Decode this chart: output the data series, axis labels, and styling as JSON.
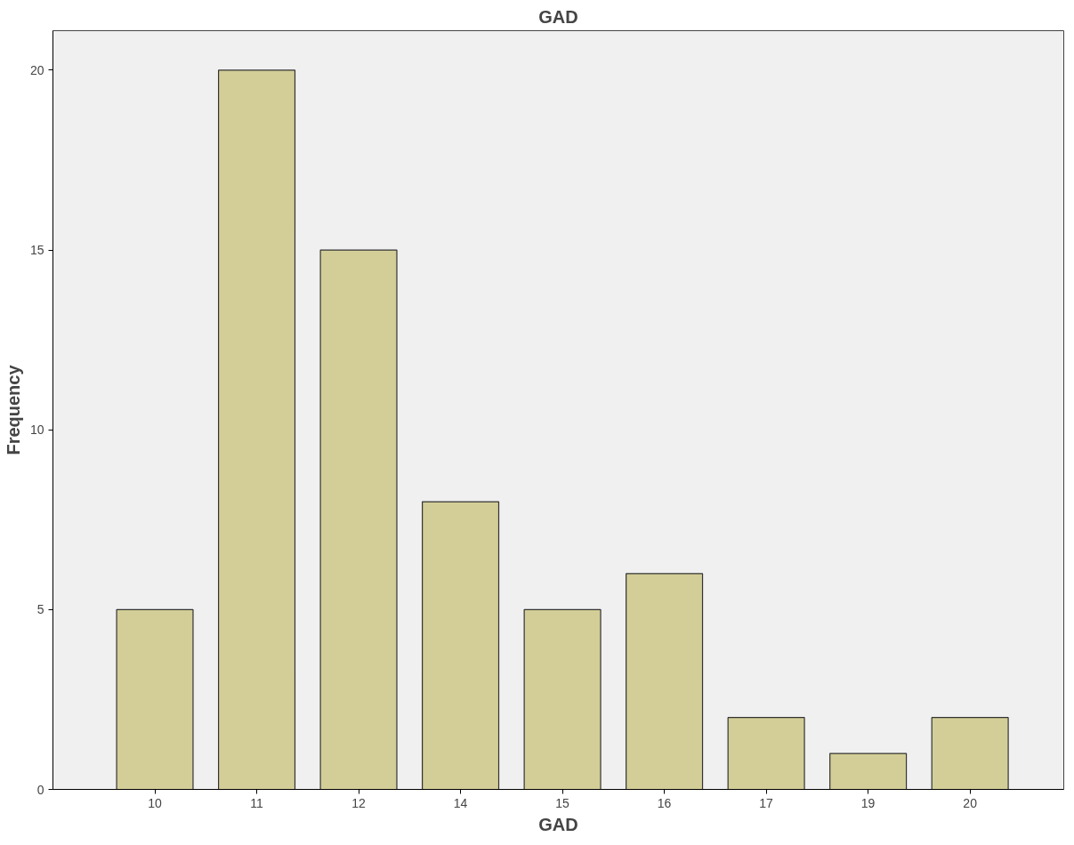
{
  "chart_data": {
    "type": "bar",
    "title": "GAD",
    "xlabel": "GAD",
    "ylabel": "Frequency",
    "categories": [
      "10",
      "11",
      "12",
      "14",
      "15",
      "16",
      "17",
      "19",
      "20"
    ],
    "values": [
      5,
      20,
      15,
      8,
      5,
      6,
      2,
      1,
      2
    ],
    "color": "#d3ce97",
    "ylim": [
      0,
      21.1
    ],
    "yticks": [
      0,
      5,
      10,
      15,
      20
    ],
    "grid": false
  }
}
